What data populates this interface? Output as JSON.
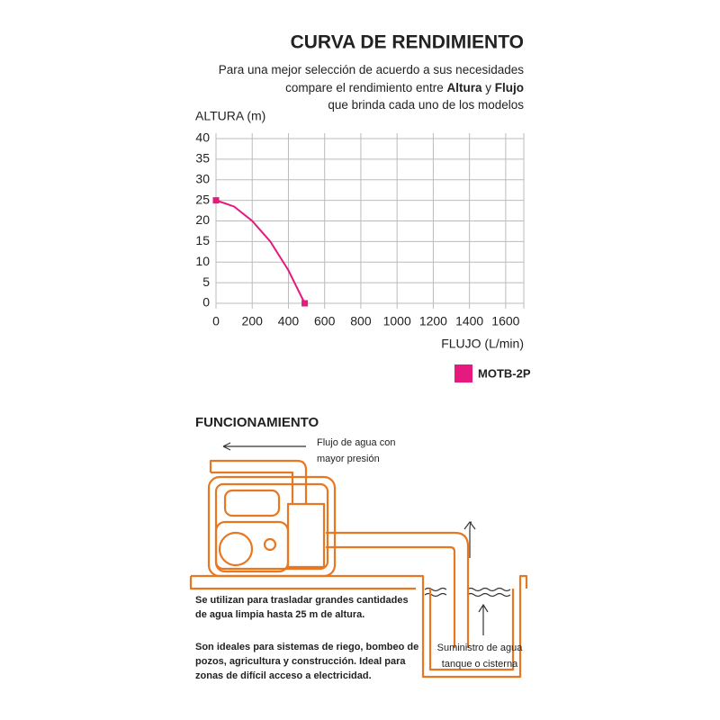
{
  "chart_data": {
    "type": "line",
    "title": "CURVA DE RENDIMIENTO",
    "y_label": "ALTURA (m)",
    "x_label": "FLUJO (L/min)",
    "x": [
      0,
      100,
      200,
      300,
      400,
      490
    ],
    "series": [
      {
        "name": "MOTB-2P",
        "color": "#e5197e",
        "values": [
          25,
          23.5,
          20,
          15,
          8,
          0
        ]
      }
    ],
    "xlim": [
      0,
      1700
    ],
    "ylim": [
      0,
      40
    ],
    "xticks": [
      0,
      200,
      400,
      600,
      800,
      1000,
      1200,
      1400,
      1600
    ],
    "yticks": [
      0,
      5,
      10,
      15,
      20,
      25,
      30,
      35,
      40
    ],
    "grid": true
  },
  "description": [
    [
      {
        "text": "Para una mejor selección de acuerdo a sus necesidades"
      }
    ],
    [
      {
        "text": "compare el rendimiento entre "
      },
      {
        "text": "Altura",
        "bold": true
      },
      {
        "text": " y "
      },
      {
        "text": "Flujo",
        "bold": true
      }
    ],
    [
      {
        "text": "que brinda cada uno de los modelos"
      }
    ]
  ],
  "section": {
    "title": "FUNCIONAMIENTO",
    "flow_label": [
      "Flujo de agua con",
      "mayor presión"
    ],
    "supply_label": [
      "Suministro de agua",
      "tanque o cisterna"
    ],
    "paragraphs": [
      [
        "Se utilizan para trasladar grandes cantidades",
        "de agua limpia hasta 25 m de altura."
      ],
      [
        "Son ideales para sistemas de riego, bombeo de",
        "pozos, agricultura y construcción. Ideal para",
        "zonas de difícil acceso a electricidad."
      ]
    ]
  }
}
